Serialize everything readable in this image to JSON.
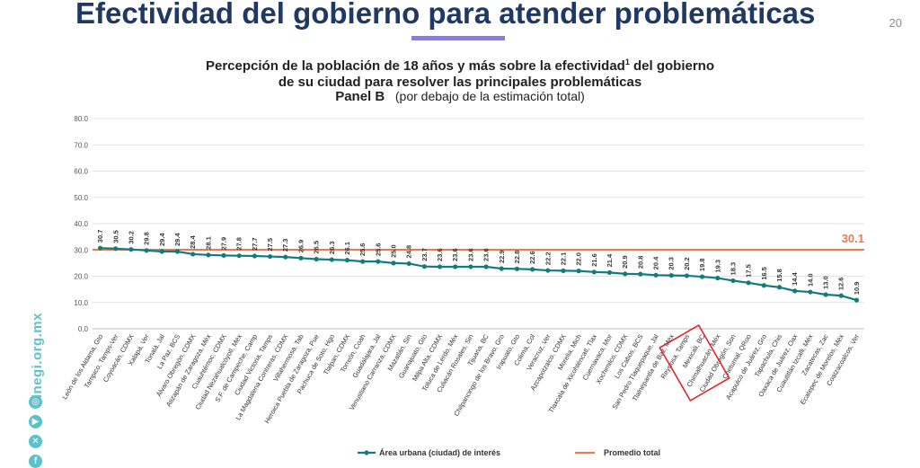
{
  "header": {
    "title": "Efectividad del gobierno para atender problemáticas",
    "page_number": "20"
  },
  "chart_heading": {
    "line1_a": "Percepción de la población de 18 años y más sobre la efectividad",
    "line1_sup": "1",
    "line1_b": " del gobierno",
    "line2": "de su ciudad para resolver las principales problemáticas",
    "panel": "Panel B",
    "panel_note": "(por debajo de la estimación total)"
  },
  "sidebar": {
    "site": "inegi.org.mx",
    "icons": [
      "instagram-icon",
      "youtube-icon",
      "x-icon",
      "facebook-icon"
    ]
  },
  "chart_data": {
    "type": "line",
    "ylim": [
      0,
      80
    ],
    "yticks": [
      "0.0",
      "10.0",
      "20.0",
      "30.0",
      "40.0",
      "50.0",
      "60.0",
      "70.0",
      "80.0"
    ],
    "grid": true,
    "legend_position": "bottom",
    "categories": [
      "León de los Aldama, Gto",
      "Tampico, Tamps-Ver",
      "Coyoacán, CDMX",
      "Xalapa, Ver",
      "Tonalá, Jal",
      "La Paz, BCS",
      "Álvaro Obregón, CDMX",
      "Atizapán de Zaragoza, Méx",
      "Cuauhtémoc, CDMX",
      "Ciudad Nezahualcóyotl, Méx",
      "S.F. de Campeche, Camp",
      "Ciudad Victoria, Tamps",
      "La Magdalena Contreras, CDMX",
      "Villahermosa, Tab",
      "Heroica Puebla de Zaragoza, Pue",
      "Pachuca de Soto, Hgo",
      "Tlalpan, CDMX",
      "Torreón, Coah",
      "Guadalajara, Jal",
      "Venustiano Carranza, CDMX",
      "Mazatlán, Sin",
      "Guanajuato, Gto",
      "Milpa Alta, CDMX",
      "Toluca de Lerdo, Méx",
      "Culiacán Rosales, Sin",
      "Tijuana, BC",
      "Chilpancingo de los Bravo, Gro",
      "Irapuato, Gto",
      "Colima, Col",
      "Veracruz, Ver",
      "Azcapotzalco, CDMX",
      "Morelia, Mich",
      "Tlaxcala de Xicohténcatl, Tlax",
      "Cuernavaca, Mor",
      "Xochimilco, CDMX",
      "Los Cabos, BCS",
      "San Pedro Tlaquepaque, Jal",
      "Tlalnepantla de Baz, Méx",
      "Reynosa, Tamps",
      "Mexicali, BC",
      "Chimalhuacán, Méx",
      "Ciudad Obregón, Son",
      "Chetumal, QRoo",
      "Acapulco de Juárez, Gro",
      "Tapachula, Chis",
      "Oaxaca de Juárez, Oax",
      "Cuautitlán Izcalli, Méx",
      "Zacatecas, Zac",
      "Ecatepec de Morelos, Méx",
      "Coatzacoalcos, Ver"
    ],
    "series": [
      {
        "name": "Área urbana (ciudad) de interés",
        "color": "#127c7c",
        "values": [
          30.7,
          30.5,
          30.2,
          29.8,
          29.4,
          29.4,
          28.4,
          28.1,
          27.9,
          27.8,
          27.7,
          27.5,
          27.3,
          26.9,
          26.5,
          26.3,
          26.1,
          25.6,
          25.6,
          25.0,
          24.8,
          23.7,
          23.6,
          23.6,
          23.6,
          23.6,
          22.9,
          22.8,
          22.6,
          22.2,
          22.1,
          22.0,
          21.6,
          21.4,
          20.9,
          20.8,
          20.4,
          20.3,
          20.2,
          19.8,
          19.3,
          18.3,
          17.5,
          16.5,
          15.8,
          14.4,
          14.0,
          13.0,
          12.6,
          10.9
        ],
        "value_labels": [
          "30.7",
          "30.5",
          "30.2",
          "29.8",
          "29.4",
          "29.4",
          "28.4",
          "28.1",
          "27.9",
          "27.8",
          "27.7",
          "27.5",
          "27.3",
          "26.9",
          "26.5",
          "26.3",
          "26.1",
          "25.6",
          "25.6",
          "25.0",
          "24.8",
          "23.7",
          "23.6",
          "23.6",
          "23.6",
          "23.6",
          "22.9",
          "22.8",
          "22.6",
          "22.2",
          "22.1",
          "22.0",
          "21.6",
          "21.4",
          "20.9",
          "20.8",
          "20.4",
          "20.3",
          "20.2",
          "19.8",
          "19.3",
          "18.3",
          "17.5",
          "16.5",
          "15.8",
          "14.4",
          "14.0",
          "13.0",
          "12.6",
          "10.9"
        ]
      },
      {
        "name": "Promedio total",
        "color": "#ec7a4f",
        "constant": 30.1,
        "label": "30.1"
      }
    ],
    "highlight": {
      "categories": [
        "Reynosa, Tamps",
        "Mexicali, BC"
      ],
      "color": "#e3242b"
    }
  }
}
